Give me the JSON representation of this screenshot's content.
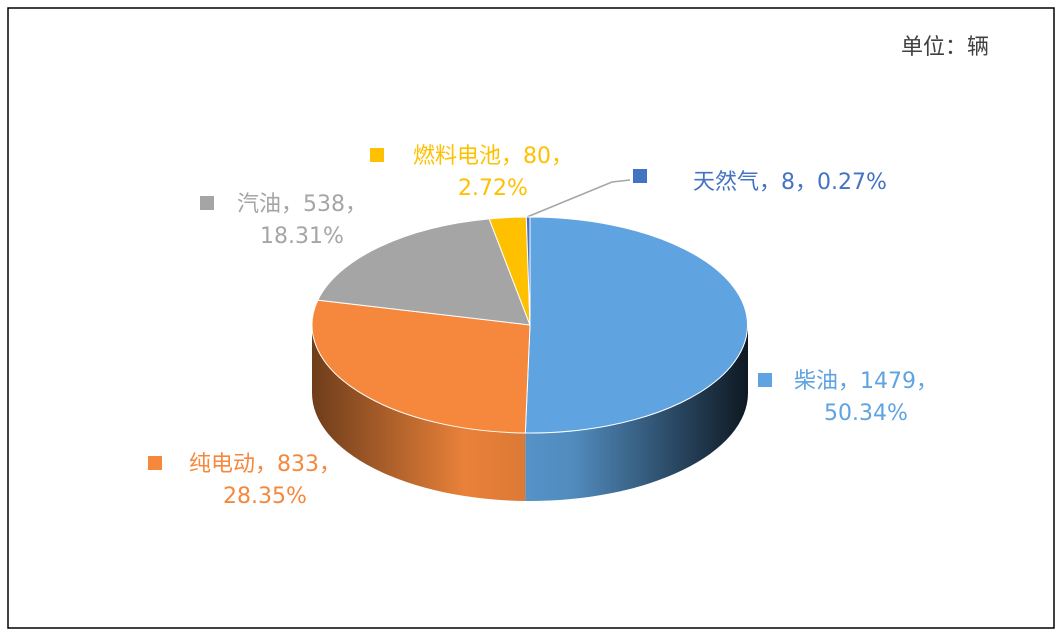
{
  "chart_data": {
    "type": "pie3d",
    "unit": "单位：辆",
    "categories": [
      "柴油",
      "纯电动",
      "汽油",
      "燃料电池",
      "天然气"
    ],
    "values": [
      1479,
      833,
      538,
      80,
      8
    ],
    "value_labels": [
      [
        "柴油，1479，",
        "50.34%"
      ],
      [
        "纯电动，833，",
        "28.35%"
      ],
      [
        "汽油，538，",
        "18.31%"
      ],
      [
        "燃料电池，80，",
        "2.72%"
      ],
      [
        "天然气，8，0.27%"
      ]
    ],
    "colors": [
      "#5fa3e0",
      "#f5883c",
      "#a5a5a5",
      "#ffc000",
      "#4472c4"
    ]
  }
}
